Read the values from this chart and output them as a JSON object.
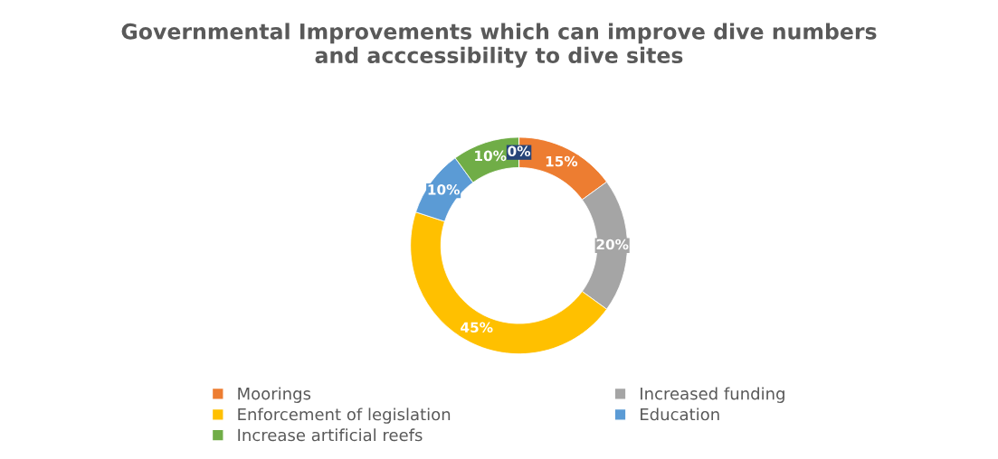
{
  "chart_data": {
    "type": "donut",
    "title": "Governmental Improvements which can improve dive numbers\nand acccessibility to dive sites",
    "categories": [
      "Moorings",
      "Increased funding",
      "Enforcement of legislation",
      "Education",
      "Increase artificial reefs",
      null
    ],
    "values": [
      15,
      20,
      45,
      10,
      10,
      0
    ],
    "colors": [
      "#ed7d31",
      "#a5a5a5",
      "#ffc000",
      "#5b9bd5",
      "#70ad47",
      "#264478"
    ],
    "value_labels": [
      "15%",
      "20%",
      "45%",
      "10%",
      "10%",
      "0%"
    ],
    "legend": "bottom"
  }
}
